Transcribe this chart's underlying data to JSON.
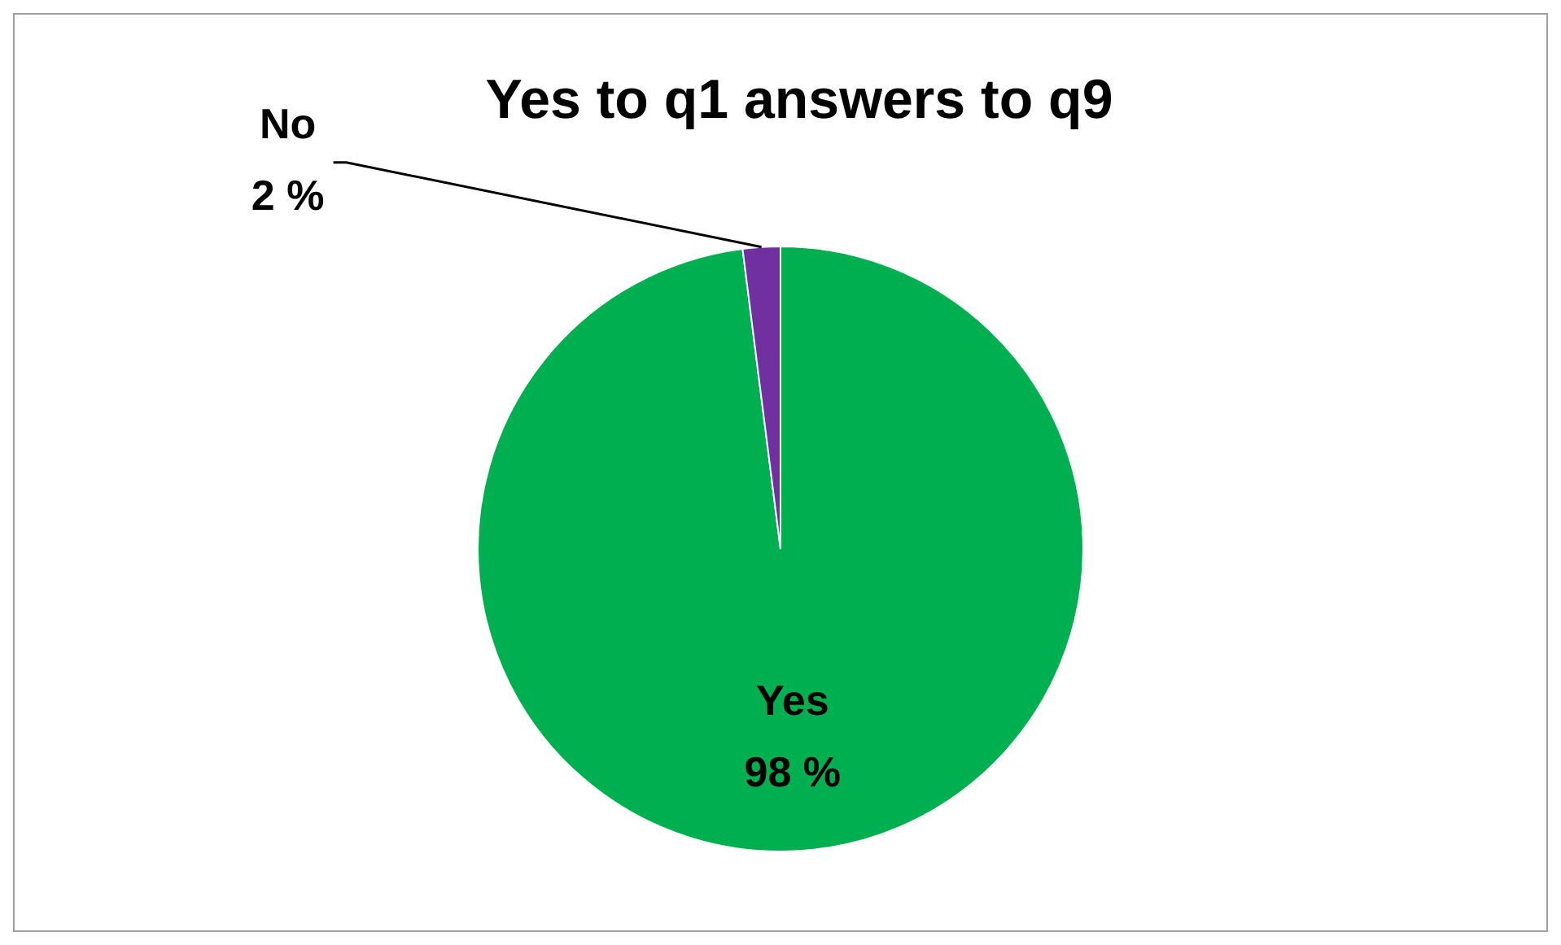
{
  "chart_data": {
    "type": "pie",
    "title": "Yes to q1 answers to q9",
    "categories": [
      "Yes",
      "No"
    ],
    "values": [
      98,
      2
    ],
    "colors": [
      "#00b050",
      "#7030a0"
    ],
    "value_labels": [
      "98 %",
      "2 %"
    ],
    "legend": false
  }
}
